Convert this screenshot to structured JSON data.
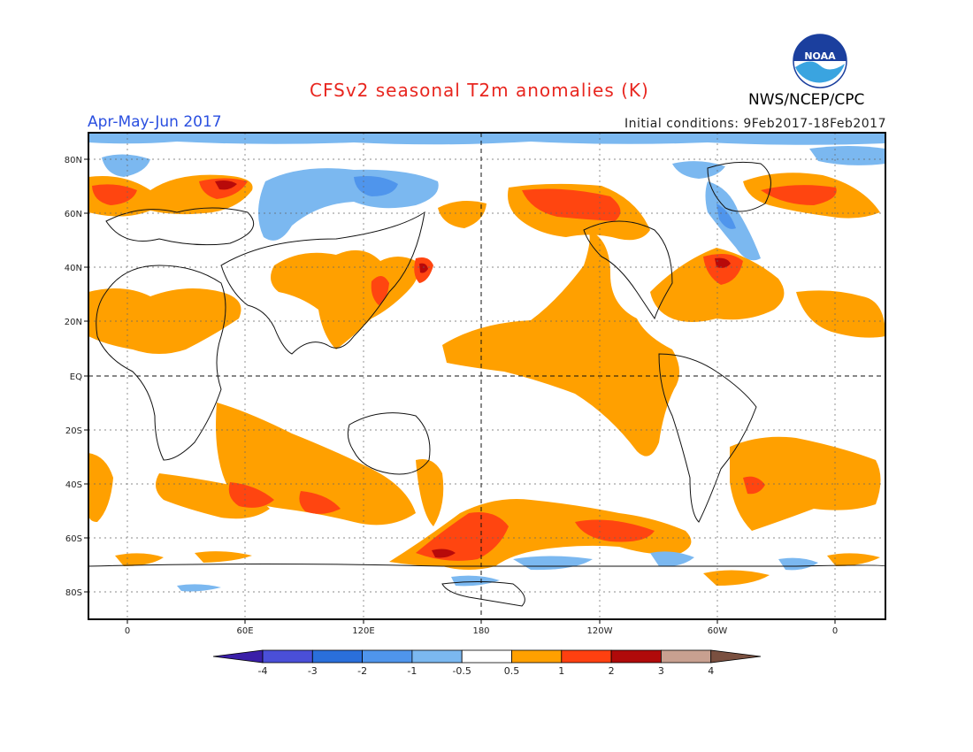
{
  "title": "CFSv2 seasonal T2m anomalies (K)",
  "season": "Apr-May-Jun 2017",
  "initial_conditions": "Initial conditions: 9Feb2017-18Feb2017",
  "agency": "NWS/NCEP/CPC",
  "logo_text": "NOAA",
  "map": {
    "lat_labels": [
      "80N",
      "60N",
      "40N",
      "20N",
      "EQ",
      "20S",
      "40S",
      "60S",
      "80S"
    ],
    "lon_labels": [
      "0",
      "60E",
      "120E",
      "180",
      "120W",
      "60W",
      "0"
    ]
  },
  "colorbar": {
    "labels": [
      "-4",
      "-3",
      "-2",
      "-1",
      "-0.5",
      "0.5",
      "1",
      "2",
      "3",
      "4"
    ],
    "colors": [
      "#3a1fa8",
      "#4a4fd8",
      "#2a6fdb",
      "#4f95ec",
      "#7bb8f0",
      "#ffffff",
      "#ffa000",
      "#ff4010",
      "#b00a0a",
      "#c8a090",
      "#7a5040"
    ]
  },
  "colors": {
    "warm1": "#ffa000",
    "warm2": "#ff4510",
    "warm3": "#b80a0a",
    "cool1": "#7bb8f0",
    "cool2": "#4f95ec"
  }
}
